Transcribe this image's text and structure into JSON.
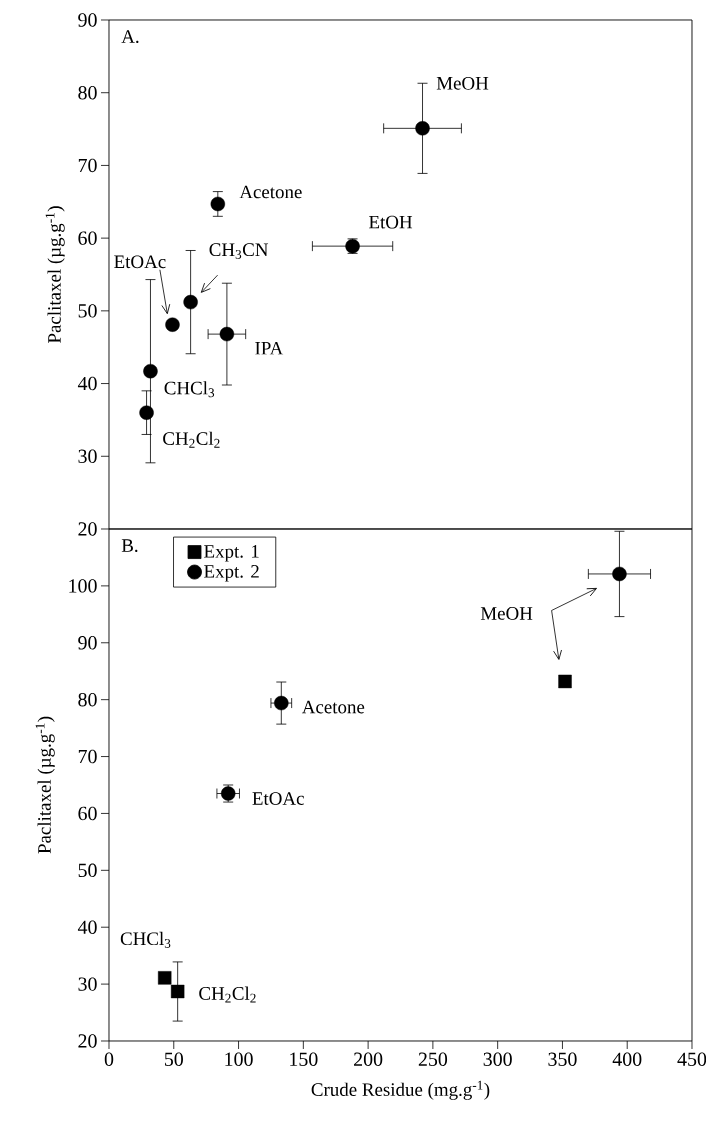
{
  "chart_data": [
    {
      "type": "scatter",
      "title": "A.",
      "ylabel": "Paclitaxel (µg.g$^{-1}$)",
      "xlim": [
        0,
        450
      ],
      "ylim": [
        20,
        90
      ],
      "yticks": [
        20,
        30,
        40,
        50,
        60,
        70,
        80,
        90
      ],
      "tick_labels": "y",
      "series": [
        {
          "color": "#000000",
          "marker": "circle",
          "x": [
            242,
            188,
            84,
            63,
            49,
            91,
            32,
            29
          ],
          "values": [
            75.1,
            58.9,
            64.7,
            51.2,
            48.1,
            46.8,
            41.7,
            36.0
          ],
          "errors": [
            6.2,
            1,
            1.7,
            7.1,
            null,
            7,
            12.6,
            3
          ],
          "xerrors": [
            30,
            31,
            null,
            null,
            null,
            14.5,
            null,
            null
          ]
        }
      ],
      "annotations": [
        {
          "text": "MeOH",
          "x": 242,
          "y": 75.1
        },
        {
          "text": "EtOH",
          "x": 188,
          "y": 58.9
        },
        {
          "text": "Acetone",
          "x": 84,
          "y": 64.7
        },
        {
          "text": "CH$_{3}$CN",
          "x": 63,
          "y": 51.2
        },
        "EtOAc",
        {
          "text": "IPA",
          "x": 91,
          "y": 46.8
        },
        {
          "text": "CHCl$_{3}$",
          "x": 32,
          "y": 41.7
        },
        {
          "text": "CH$_{2}$Cl$_{2}$",
          "x": 29,
          "y": 36.0
        }
      ]
    },
    {
      "type": "scatter",
      "title": "B.",
      "xlabel": "Crude Residue (mg.g$^{-1}$)",
      "ylabel": "Paclitaxel (µg.g$^{-1}$)",
      "xlim": [
        0,
        450
      ],
      "ylim": [
        20,
        110
      ],
      "xticks": [
        0,
        50,
        100,
        150,
        200,
        250,
        300,
        350,
        400,
        450
      ],
      "yticks": [
        20,
        30,
        40,
        50,
        60,
        70,
        80,
        90,
        100
      ],
      "legend": "top left",
      "series": [
        {
          "name": "Expt. 1",
          "color": "#000000",
          "marker": "square",
          "x": [
            352,
            43,
            53
          ],
          "values": [
            83.2,
            31.1,
            28.7
          ],
          "errors": [
            null,
            null,
            5.2
          ]
        },
        {
          "name": "Expt. 2",
          "color": "#000000",
          "marker": "circle",
          "x": [
            394,
            133,
            92
          ],
          "values": [
            102.1,
            79.4,
            63.5
          ],
          "errors": [
            7.5,
            3.7,
            1.5
          ],
          "xerrors": [
            24,
            8,
            8.7
          ]
        }
      ],
      "annotations": [
        "MeOH",
        {
          "text": "Acetone",
          "x": 133,
          "y": 79.4
        },
        {
          "text": "EtOAc",
          "x": 92,
          "y": 63.5
        },
        {
          "text": "CHCl$_{3}$",
          "x": 43,
          "y": 31.1
        },
        {
          "text": "CH$_{2}$Cl$_{2}$",
          "x": 53,
          "y": 28.7
        }
      ]
    }
  ]
}
